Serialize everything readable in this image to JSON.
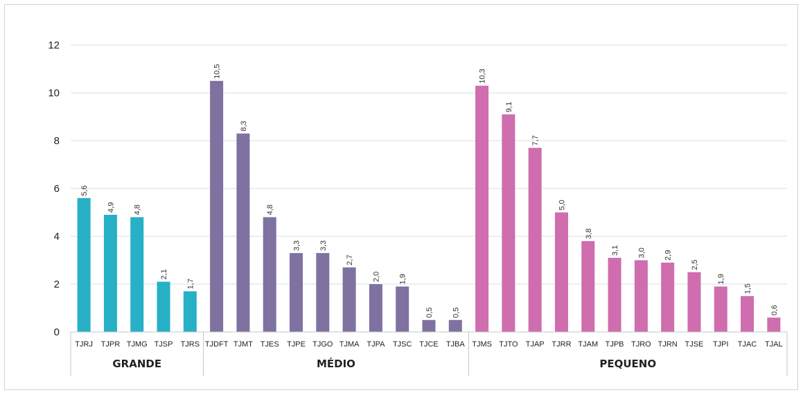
{
  "chart_data": {
    "type": "bar",
    "ylim": [
      0,
      12
    ],
    "yticks": [
      "0",
      "2",
      "4",
      "6",
      "8",
      "10",
      "12"
    ],
    "grid": true,
    "legend": "none",
    "groups": [
      {
        "name": "GRANDE",
        "color": "#27b0c6",
        "categories": [
          "TJRJ",
          "TJPR",
          "TJMG",
          "TJSP",
          "TJRS"
        ],
        "values": [
          5.6,
          4.9,
          4.8,
          2.1,
          1.7
        ],
        "labels": [
          "5,6",
          "4,9",
          "4,8",
          "2,1",
          "1,7"
        ]
      },
      {
        "name": "MÉDIO",
        "color": "#7f71a0",
        "categories": [
          "TJDFT",
          "TJMT",
          "TJES",
          "TJPE",
          "TJGO",
          "TJMA",
          "TJPA",
          "TJSC",
          "TJCE",
          "TJBA"
        ],
        "values": [
          10.5,
          8.3,
          4.8,
          3.3,
          3.3,
          2.7,
          2.0,
          1.9,
          0.5,
          0.5
        ],
        "labels": [
          "10,5",
          "8,3",
          "4,8",
          "3,3",
          "3,3",
          "2,7",
          "2,0",
          "1,9",
          "0,5",
          "0,5"
        ]
      },
      {
        "name": "PEQUENO",
        "color": "#cf6dae",
        "categories": [
          "TJMS",
          "TJTO",
          "TJAP",
          "TJRR",
          "TJAM",
          "TJPB",
          "TJRO",
          "TJRN",
          "TJSE",
          "TJPI",
          "TJAC",
          "TJAL"
        ],
        "values": [
          10.3,
          9.1,
          7.7,
          5.0,
          3.8,
          3.1,
          3.0,
          2.9,
          2.5,
          1.9,
          1.5,
          0.6
        ],
        "labels": [
          "10,3",
          "9,1",
          "7,7",
          "5,0",
          "3,8",
          "3,1",
          "3,0",
          "2,9",
          "2,5",
          "1,9",
          "1,5",
          "0,6"
        ]
      }
    ]
  }
}
